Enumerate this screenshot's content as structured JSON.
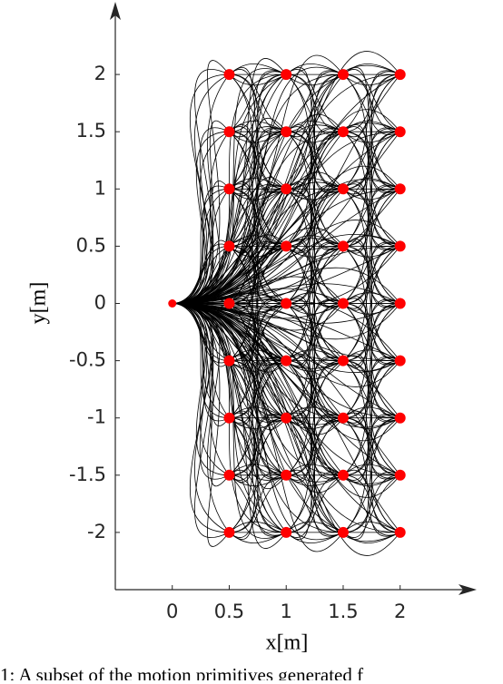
{
  "chart_data": {
    "type": "scatter",
    "xlabel": "x[m]",
    "ylabel": "y[m]",
    "caption": "1: A subset of the motion primitives generated f",
    "xlim": [
      -0.5,
      2.6
    ],
    "ylim": [
      -2.5,
      2.5
    ],
    "xticks": [
      0,
      0.5,
      1,
      1.5,
      2
    ],
    "yticks": [
      -2,
      -1.5,
      -1,
      -0.5,
      0,
      0.5,
      1,
      1.5,
      2
    ],
    "series": [
      {
        "color": "#ff0000",
        "x": [
          0
        ],
        "y": [
          0
        ]
      },
      {
        "color": "#ff0000",
        "x": [
          0.5,
          0.5,
          0.5,
          0.5,
          0.5,
          0.5,
          0.5,
          0.5,
          0.5,
          1,
          1,
          1,
          1,
          1,
          1,
          1,
          1,
          1,
          1.5,
          1.5,
          1.5,
          1.5,
          1.5,
          1.5,
          1.5,
          1.5,
          1.5,
          2,
          2,
          2,
          2,
          2,
          2,
          2,
          2,
          2
        ],
        "y": [
          2,
          1.5,
          1,
          0.5,
          0,
          -0.5,
          -1,
          -1.5,
          -2,
          2,
          1.5,
          1,
          0.5,
          0,
          -0.5,
          -1,
          -1.5,
          -2,
          2,
          1.5,
          1,
          0.5,
          0,
          -0.5,
          -1,
          -1.5,
          -2,
          2,
          1.5,
          1,
          0.5,
          0,
          -0.5,
          -1,
          -1.5,
          -2
        ]
      }
    ]
  }
}
